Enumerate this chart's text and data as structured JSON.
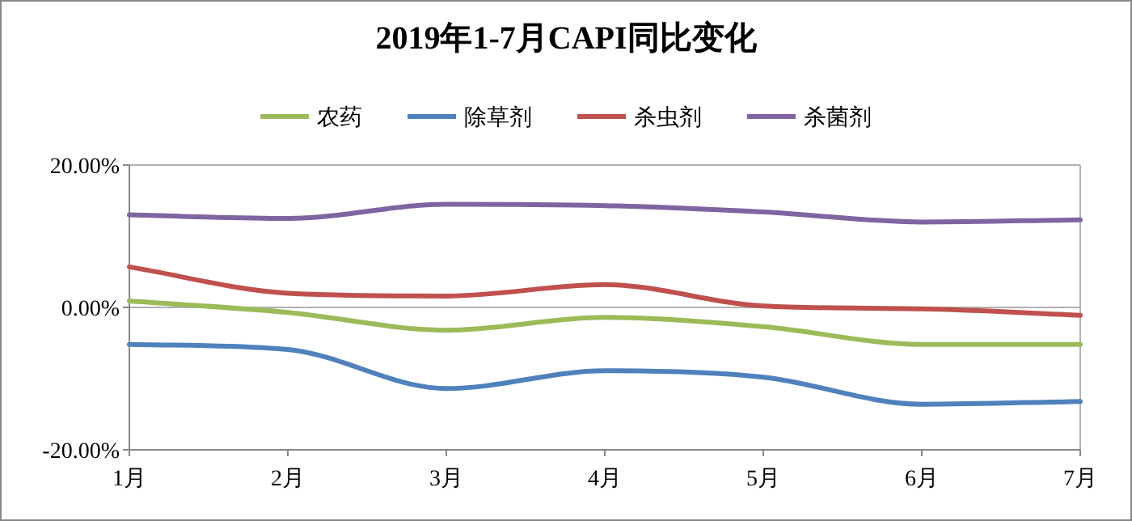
{
  "chart_data": {
    "type": "line",
    "title": "2019年1-7月CAPI同比变化",
    "categories": [
      "1月",
      "2月",
      "3月",
      "4月",
      "5月",
      "6月",
      "7月"
    ],
    "series": [
      {
        "name": "农药",
        "color": "#9bbb59",
        "values": [
          0.9,
          -0.7,
          -3.2,
          -1.4,
          -2.7,
          -5.2,
          -5.2
        ]
      },
      {
        "name": "除草剂",
        "color": "#4f81bd",
        "values": [
          -5.2,
          -5.9,
          -11.4,
          -8.9,
          -9.8,
          -13.6,
          -13.2
        ]
      },
      {
        "name": "杀虫剂",
        "color": "#c0504d",
        "values": [
          5.7,
          2.0,
          1.6,
          3.2,
          0.2,
          -0.2,
          -1.1
        ]
      },
      {
        "name": "杀菌剂",
        "color": "#8064a2",
        "values": [
          13.0,
          12.5,
          14.5,
          14.3,
          13.4,
          12.0,
          12.3
        ]
      }
    ],
    "ylim": [
      -20,
      20
    ],
    "yticks": [
      {
        "value": -20,
        "label": "-20.00%"
      },
      {
        "value": 0,
        "label": "0.00%"
      },
      {
        "value": 20,
        "label": "20.00%"
      }
    ],
    "grid": "y",
    "legend": "top",
    "marker": "none",
    "line_style": "solid"
  }
}
